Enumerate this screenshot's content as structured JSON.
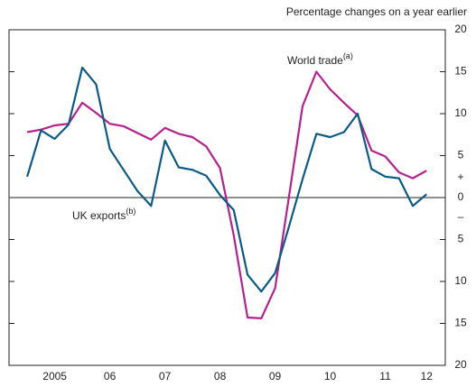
{
  "chart_data": {
    "type": "line",
    "subtitle": "Percentage changes on a year earlier",
    "x": [
      2005,
      2005.25,
      2005.5,
      2005.75,
      2006,
      2006.25,
      2006.5,
      2006.75,
      2007,
      2007.25,
      2007.5,
      2007.75,
      2008,
      2008.25,
      2008.5,
      2008.75,
      2009,
      2009.25,
      2009.5,
      2009.75,
      2010,
      2010.25,
      2010.5,
      2010.75,
      2011,
      2011.25,
      2011.5,
      2011.75,
      2012,
      2012.25
    ],
    "series": [
      {
        "name": "World trade",
        "note": "(a)",
        "color": "#b5208e",
        "values": [
          7.8,
          8.1,
          8.6,
          8.8,
          11.3,
          10.1,
          8.8,
          8.5,
          7.7,
          6.9,
          8.3,
          7.6,
          7.2,
          6.1,
          3.5,
          -4.5,
          -14.3,
          -14.4,
          -10.8,
          0,
          10.9,
          15,
          12.9,
          11.3,
          9.8,
          5.6,
          4.9,
          3,
          2.3,
          3.2
        ]
      },
      {
        "name": "UK exports",
        "note": "(b)",
        "color": "#0b5a86",
        "values": [
          2.5,
          8,
          7,
          8.7,
          15.5,
          13.5,
          5.8,
          3.3,
          0.8,
          -1,
          6.8,
          3.6,
          3.3,
          2.6,
          0.3,
          -1.5,
          -9.2,
          -11.2,
          -9,
          -3.5,
          2.2,
          7.6,
          7.2,
          7.8,
          10,
          3.4,
          2.5,
          2.3,
          -1,
          0.4
        ]
      }
    ],
    "xlim": [
      2004.67,
      2012.59
    ],
    "xticks": [
      {
        "value": 2005.5,
        "label": "2005"
      },
      {
        "value": 2006.5,
        "label": "06"
      },
      {
        "value": 2007.5,
        "label": "07"
      },
      {
        "value": 2008.5,
        "label": "08"
      },
      {
        "value": 2009.5,
        "label": "09"
      },
      {
        "value": 2010.5,
        "label": "10"
      },
      {
        "value": 2011.5,
        "label": "11"
      },
      {
        "value": 2012.25,
        "label": "12"
      }
    ],
    "ylim": [
      -20,
      20
    ],
    "yticks": [
      {
        "value": -20,
        "label": "20"
      },
      {
        "value": -15,
        "label": "15"
      },
      {
        "value": -10,
        "label": "10"
      },
      {
        "value": -5,
        "label": "5"
      },
      0,
      5,
      10,
      15,
      20
    ],
    "plus_sign": "+",
    "minus_sign": "–"
  }
}
